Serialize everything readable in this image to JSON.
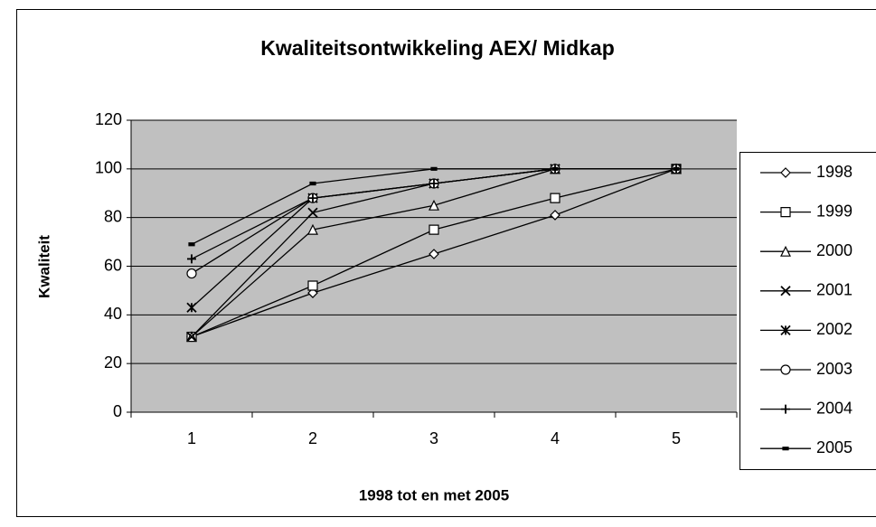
{
  "chart_data": {
    "type": "line",
    "title": "Kwaliteitsontwikkeling AEX/ Midkap",
    "x_label": "1998 tot en met 2005",
    "y_label": "Kwaliteit",
    "categories": [
      "1",
      "2",
      "3",
      "4",
      "5"
    ],
    "ylim": [
      0,
      120
    ],
    "yticks": [
      0,
      20,
      40,
      60,
      80,
      100,
      120
    ],
    "grid": true,
    "legend": "right",
    "series": [
      {
        "name": "1998",
        "color": "#000000",
        "marker": "diamond",
        "values": [
          31,
          49,
          65,
          81,
          100
        ]
      },
      {
        "name": "1999",
        "color": "#000000",
        "marker": "square",
        "values": [
          31,
          52,
          75,
          88,
          100
        ]
      },
      {
        "name": "2000",
        "color": "#000000",
        "marker": "triangle",
        "values": [
          31,
          75,
          85,
          100,
          100
        ]
      },
      {
        "name": "2001",
        "color": "#000000",
        "marker": "x",
        "values": [
          31,
          82,
          94,
          100,
          100
        ]
      },
      {
        "name": "2002",
        "color": "#000000",
        "marker": "star",
        "values": [
          43,
          88,
          94,
          100,
          100
        ]
      },
      {
        "name": "2003",
        "color": "#000000",
        "marker": "circle",
        "values": [
          57,
          88,
          94,
          100,
          100
        ]
      },
      {
        "name": "2004",
        "color": "#000000",
        "marker": "plus",
        "values": [
          63,
          88,
          94,
          100,
          100
        ]
      },
      {
        "name": "2005",
        "color": "#000000",
        "marker": "dash",
        "values": [
          69,
          94,
          100,
          100,
          100
        ]
      }
    ]
  }
}
